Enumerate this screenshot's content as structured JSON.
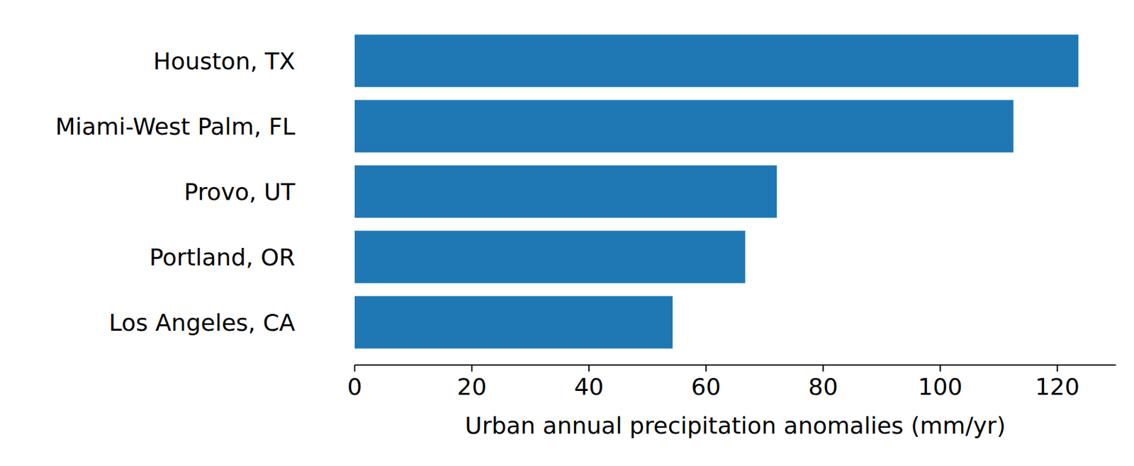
{
  "chart_data": {
    "type": "bar",
    "orientation": "horizontal",
    "x_label": "Urban annual precipitation anomalies (mm/yr)",
    "categories": [
      "Houston, TX",
      "Miami-West Palm, FL",
      "Provo, UT",
      "Portland, OR",
      "Los Angeles, CA"
    ],
    "values": [
      123.6,
      112.5,
      72.1,
      66.7,
      54.3
    ],
    "color": "#1f77b4",
    "xlim": [
      0,
      130
    ],
    "xticks": [
      0,
      20,
      40,
      60,
      80,
      100,
      120
    ],
    "grid": false
  }
}
